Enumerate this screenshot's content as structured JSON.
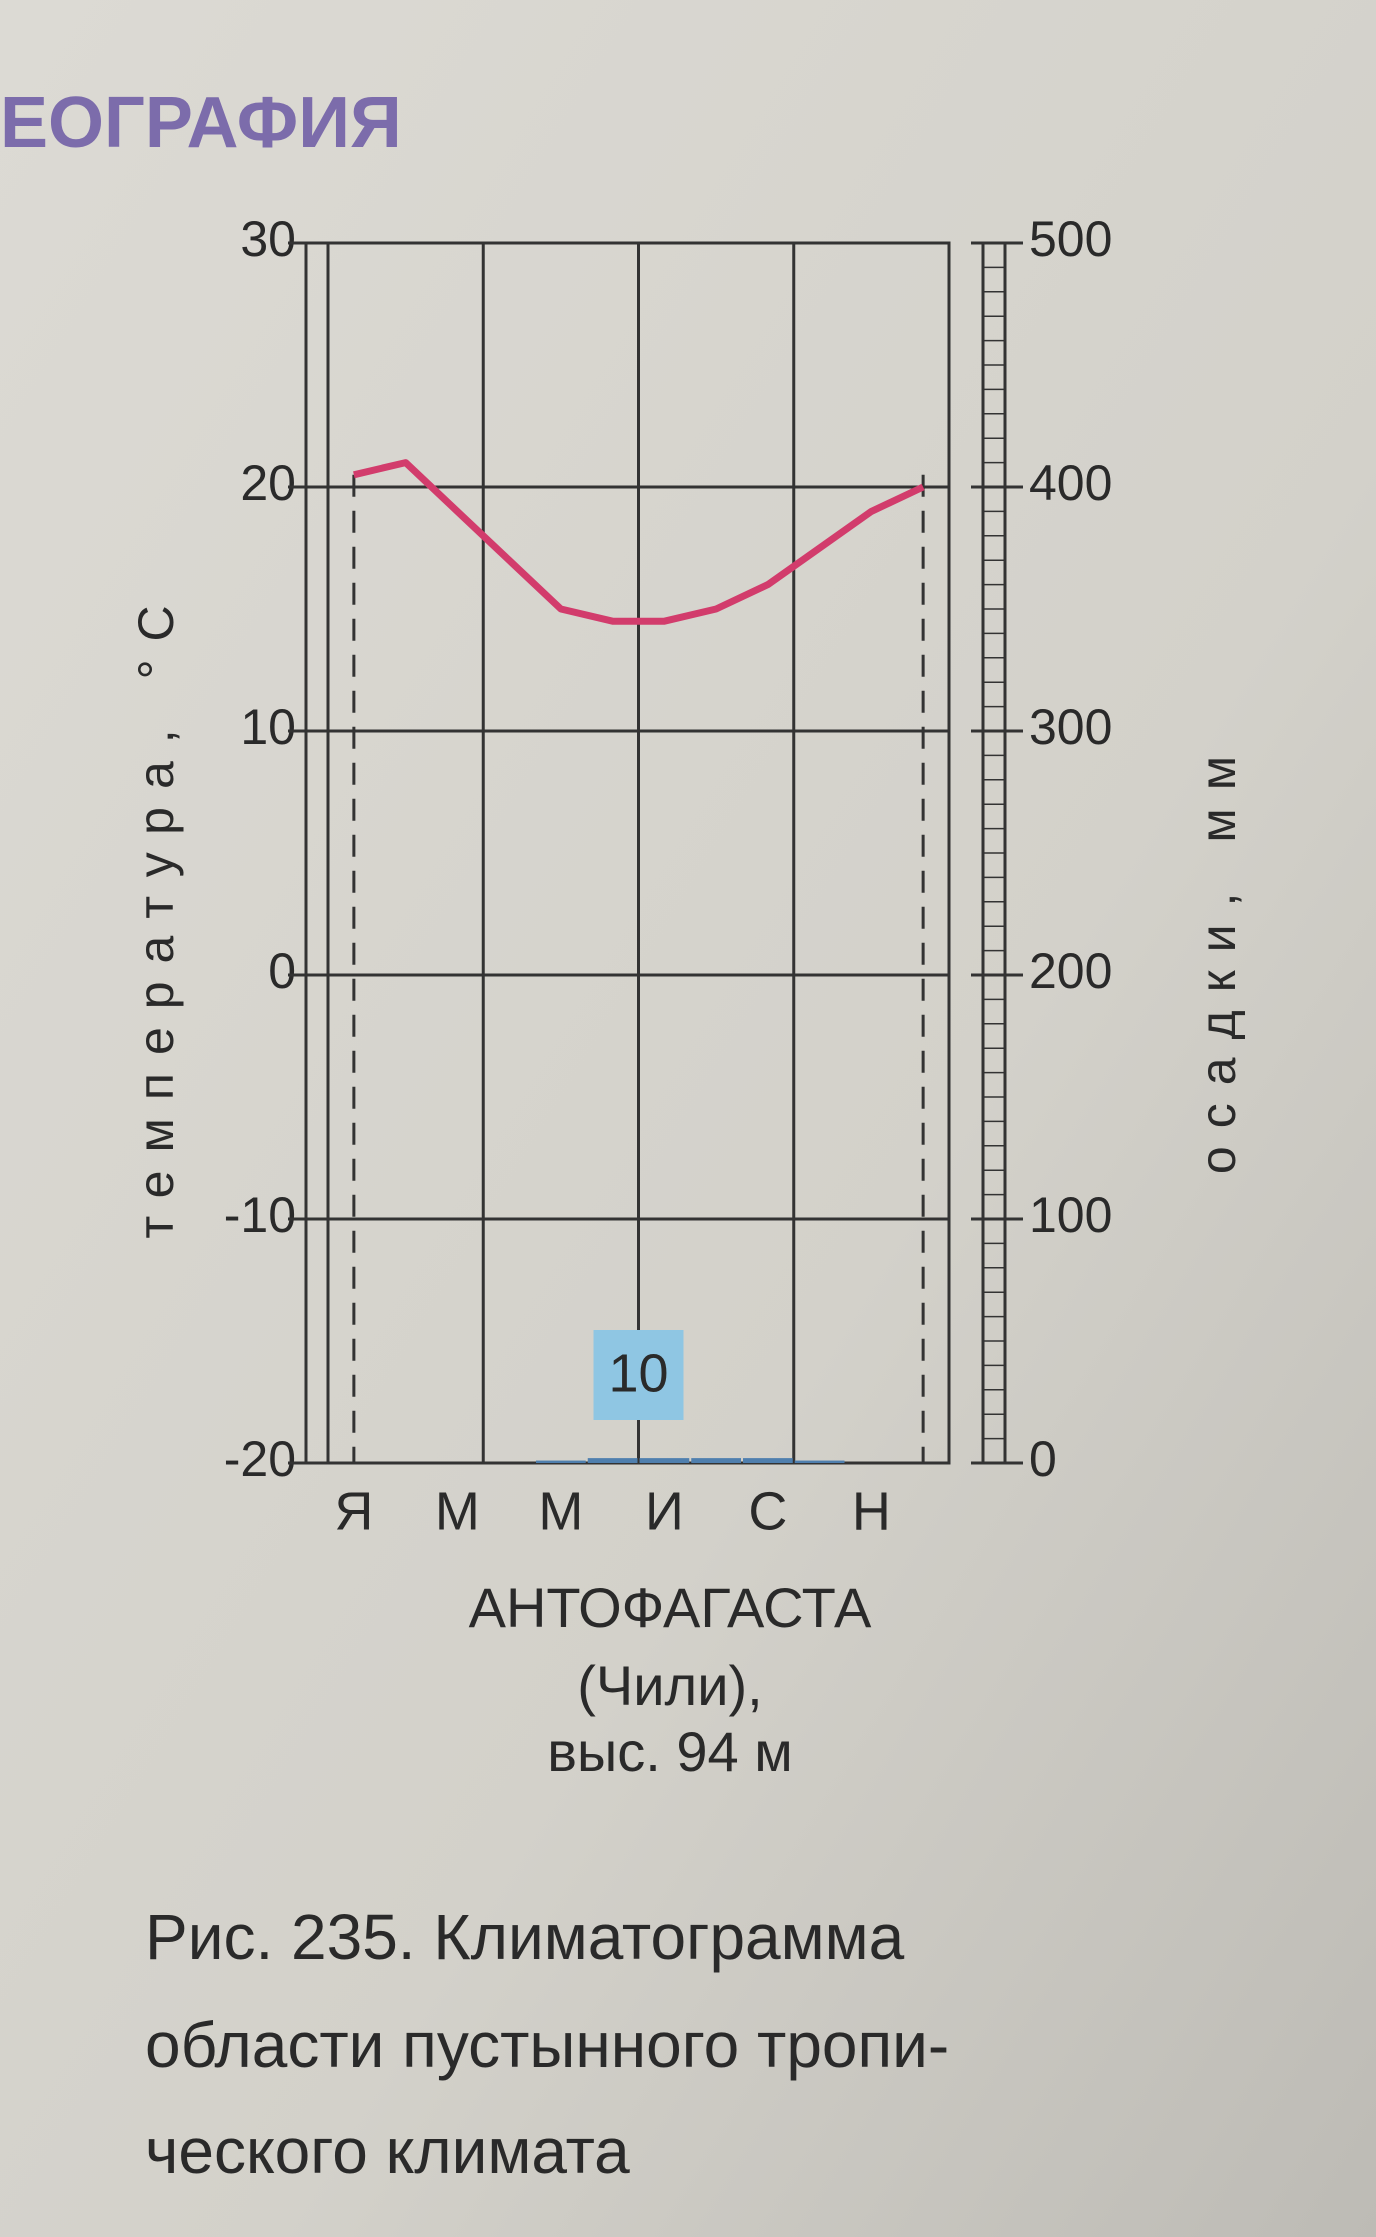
{
  "header": "ЕОГРАФИЯ",
  "chart_data": {
    "type": "climatogram",
    "ylabel": "температура, °С",
    "y2label": "осадки, мм",
    "categories": [
      "Я",
      null,
      "М",
      null,
      "М",
      null,
      "И",
      null,
      "С",
      null,
      "Н",
      null
    ],
    "series": [
      {
        "name": "температура",
        "type": "line",
        "color": "#d23c6c",
        "values": [
          20.5,
          21,
          19,
          17,
          15,
          14.5,
          14.5,
          15,
          16,
          17.5,
          19,
          20
        ]
      },
      {
        "name": "осадки",
        "type": "bar",
        "axis": "y2",
        "color": "#4f7fae",
        "values": [
          0,
          0,
          0,
          0,
          1,
          2,
          2,
          2,
          2,
          1,
          0,
          0
        ]
      }
    ],
    "total_precipitation": 10,
    "ylim": [
      -20,
      30
    ],
    "yticks": [
      -20,
      -10,
      0,
      10,
      20,
      30
    ],
    "y2lim": [
      0,
      500
    ],
    "y2ticks": [
      0,
      100,
      200,
      300,
      400,
      500
    ],
    "grid": true,
    "station": [
      "АНТОФАГАСТА",
      "(Чили),",
      "выс. 94 м"
    ]
  },
  "caption": [
    "Рис. 235. Климатограмма",
    "области пустынного тропи-",
    "ческого климата"
  ]
}
